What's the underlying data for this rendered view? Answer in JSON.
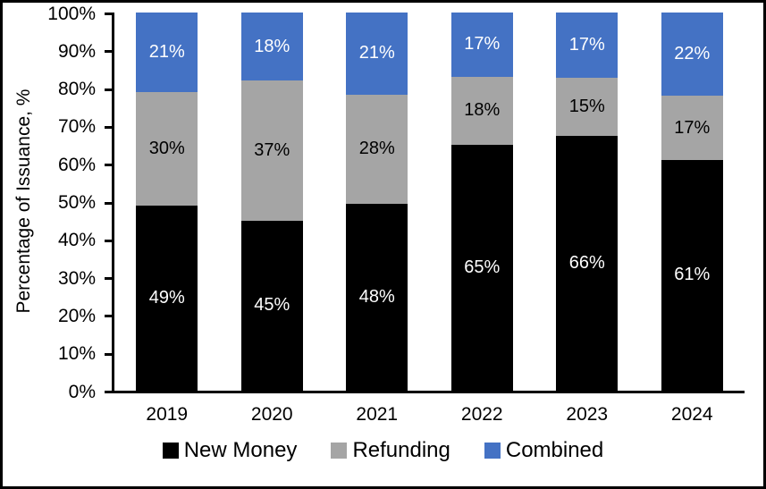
{
  "chart_data": {
    "type": "bar",
    "stacked": true,
    "title": "",
    "xlabel": "",
    "ylabel": "Percentage of Issuance, %",
    "categories": [
      "2019",
      "2020",
      "2021",
      "2022",
      "2023",
      "2024"
    ],
    "series": [
      {
        "name": "New Money",
        "color": "#000000",
        "label_color": "#ffffff",
        "values": [
          49,
          45,
          48,
          65,
          66,
          61
        ]
      },
      {
        "name": "Refunding",
        "color": "#A5A5A5",
        "label_color": "#000000",
        "values": [
          30,
          37,
          28,
          18,
          15,
          17
        ]
      },
      {
        "name": "Combined",
        "color": "#4472C4",
        "label_color": "#ffffff",
        "values": [
          21,
          18,
          21,
          17,
          17,
          22
        ]
      }
    ],
    "value_suffix": "%",
    "y_ticks": [
      "0%",
      "10%",
      "20%",
      "30%",
      "40%",
      "50%",
      "60%",
      "70%",
      "80%",
      "90%",
      "100%"
    ],
    "ylim": [
      0,
      100
    ],
    "grid": false,
    "legend_position": "bottom",
    "axis_color": "#000000",
    "background_color": "#ffffff"
  }
}
